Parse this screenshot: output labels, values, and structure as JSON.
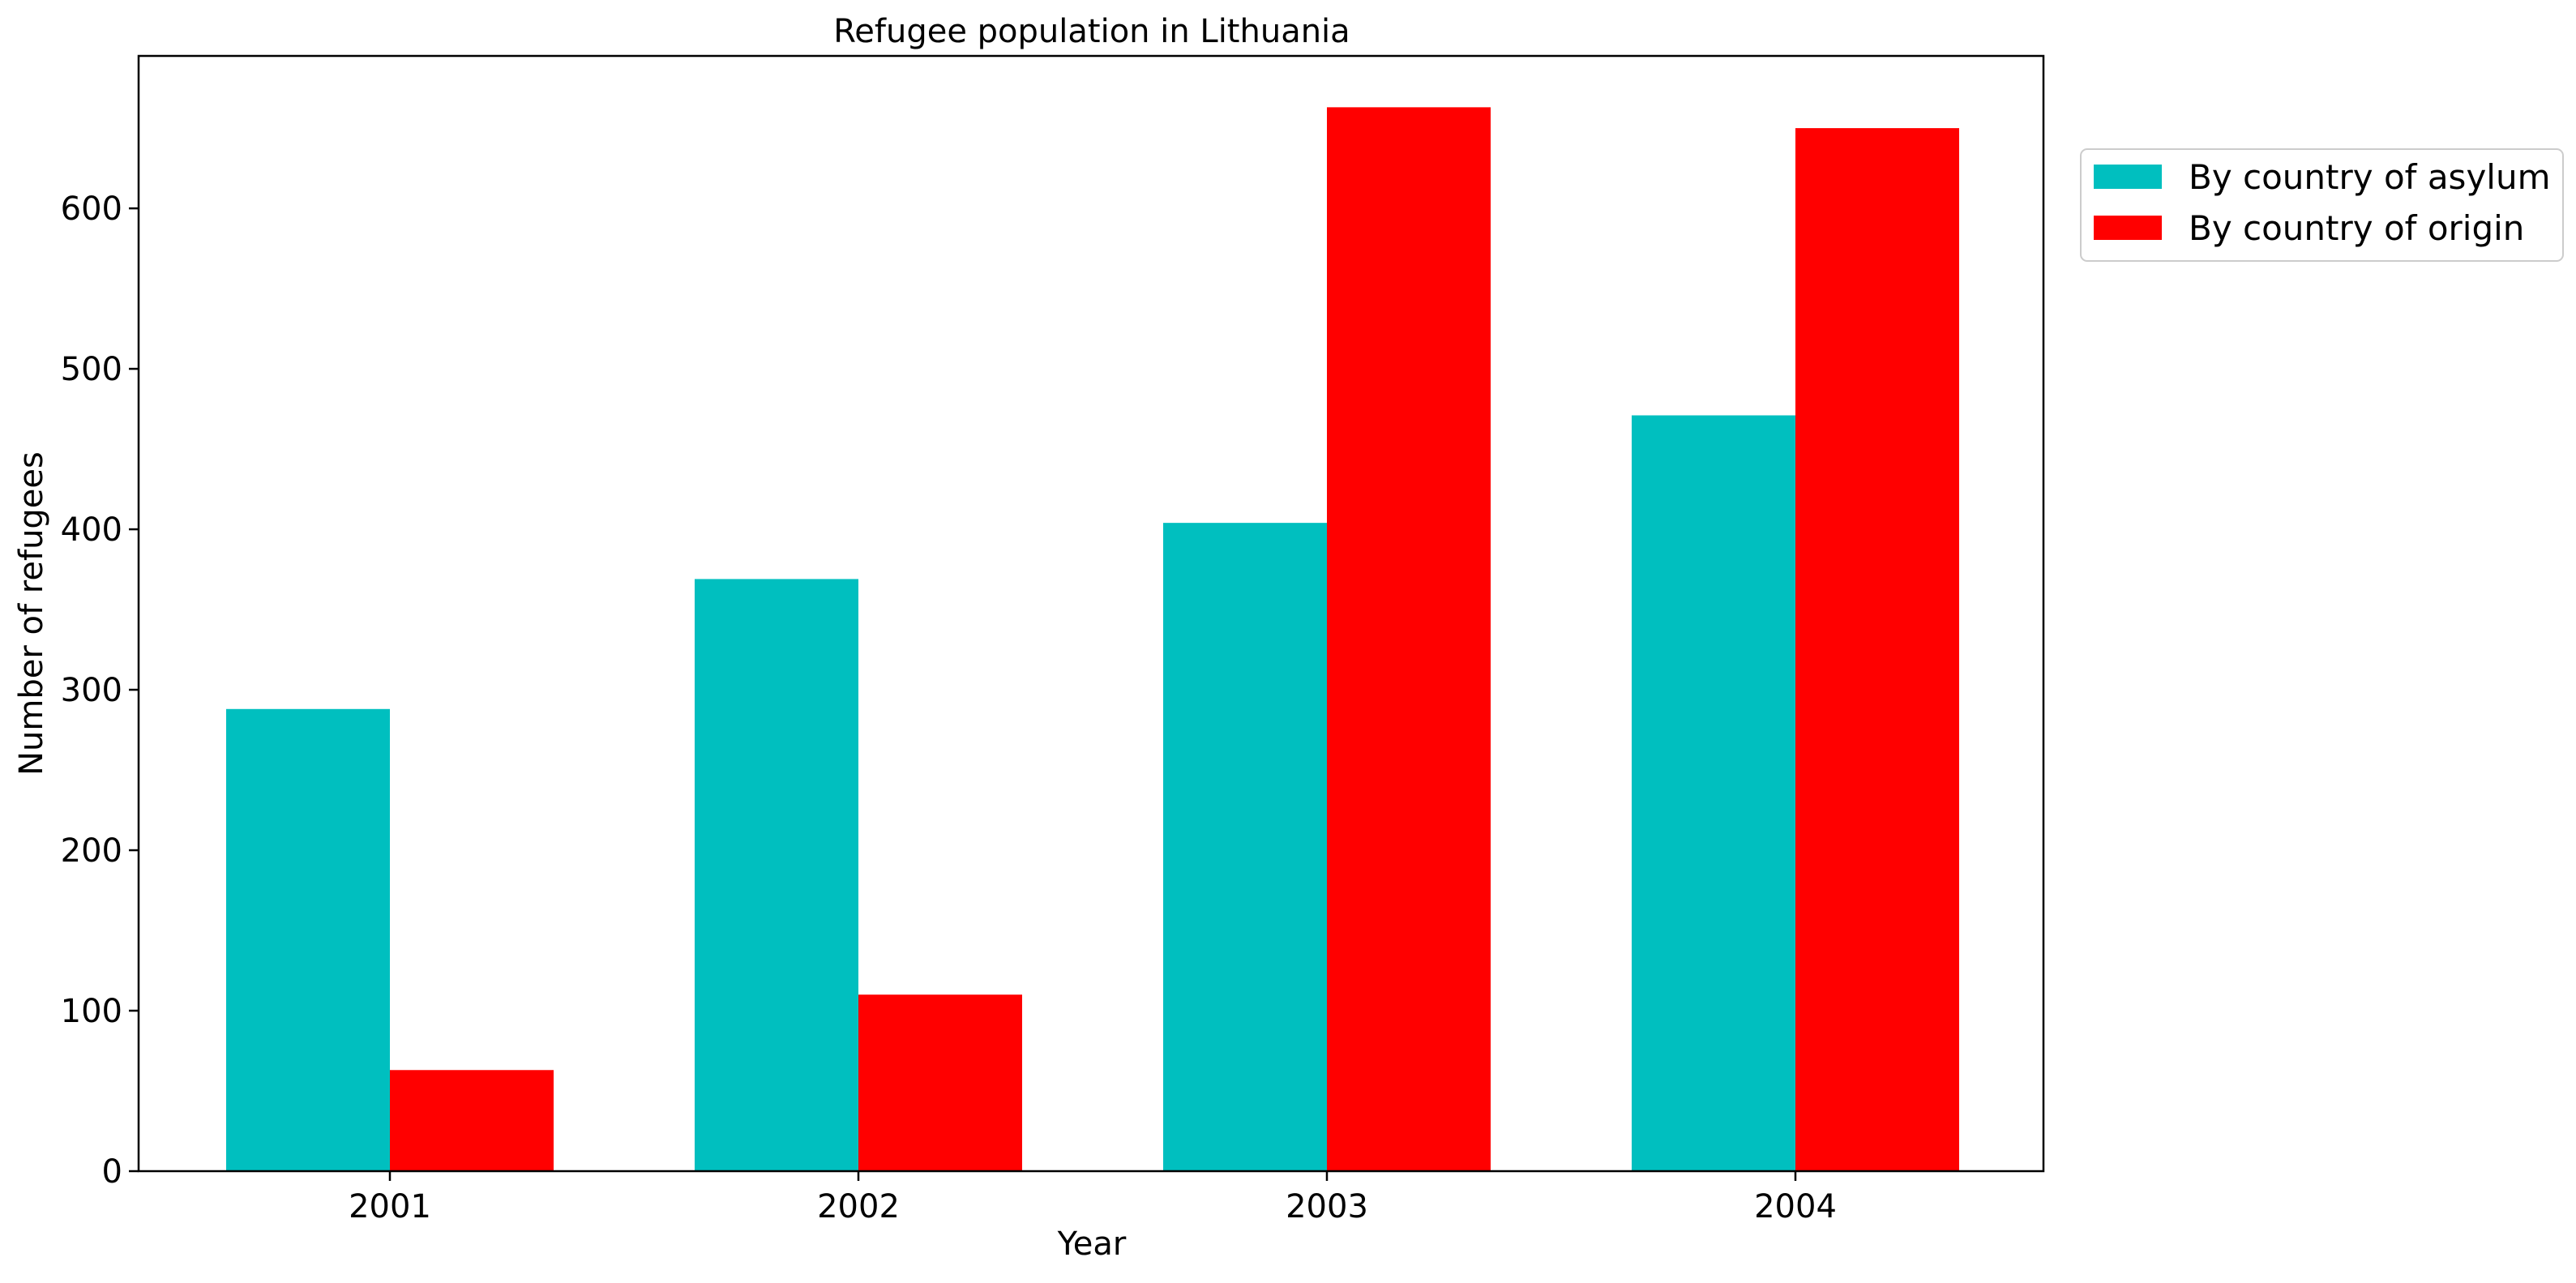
{
  "chart_data": {
    "type": "bar",
    "title": "Refugee population in Lithuania",
    "xlabel": "Year",
    "ylabel": "Number of refugees",
    "categories": [
      "2001",
      "2002",
      "2003",
      "2004"
    ],
    "series": [
      {
        "name": "By country of asylum",
        "color": "#00bfbf",
        "values": [
          288,
          369,
          404,
          471
        ]
      },
      {
        "name": "By country of origin",
        "color": "#ff0000",
        "values": [
          63,
          110,
          663,
          650
        ]
      }
    ],
    "ylim": [
      0,
      695
    ],
    "yticks": [
      0,
      100,
      200,
      300,
      400,
      500,
      600
    ],
    "grid": false,
    "legend_position": "outside-top-right"
  }
}
